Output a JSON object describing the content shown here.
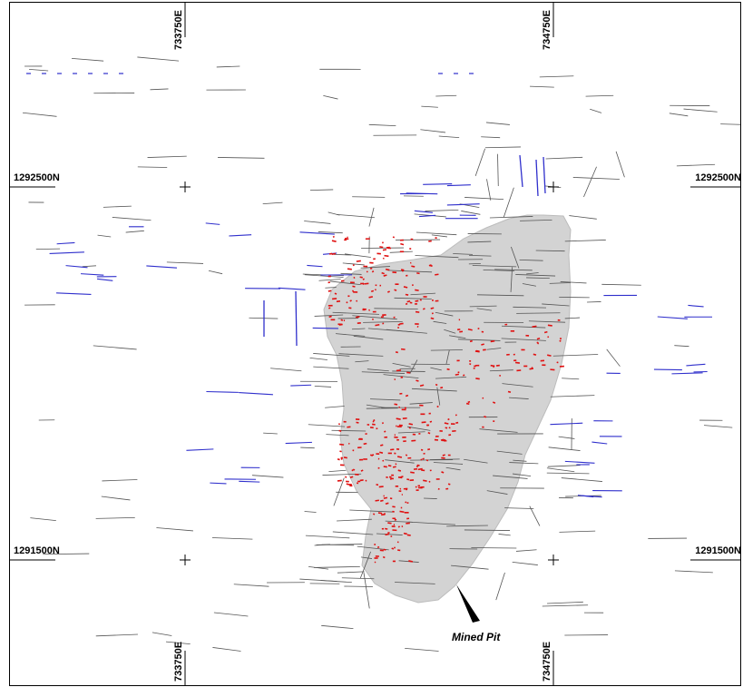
{
  "grid_labels": {
    "easting_left_top": "733750E",
    "easting_right_top": "734750E",
    "easting_left_bottom": "733750E",
    "easting_right_bottom": "734750E",
    "northing_upper_left": "1292500N",
    "northing_upper_right": "1292500N",
    "northing_lower_left": "1291500N",
    "northing_lower_right": "1291500N"
  },
  "pit_label": "Mined Pit",
  "colors": {
    "pit_fill": "#d3d3d3",
    "drill_trace": "#555555",
    "drill_trace_blue": "#2f2fcc",
    "mineralized_intercept": "#e01010",
    "frame": "#000000"
  }
}
